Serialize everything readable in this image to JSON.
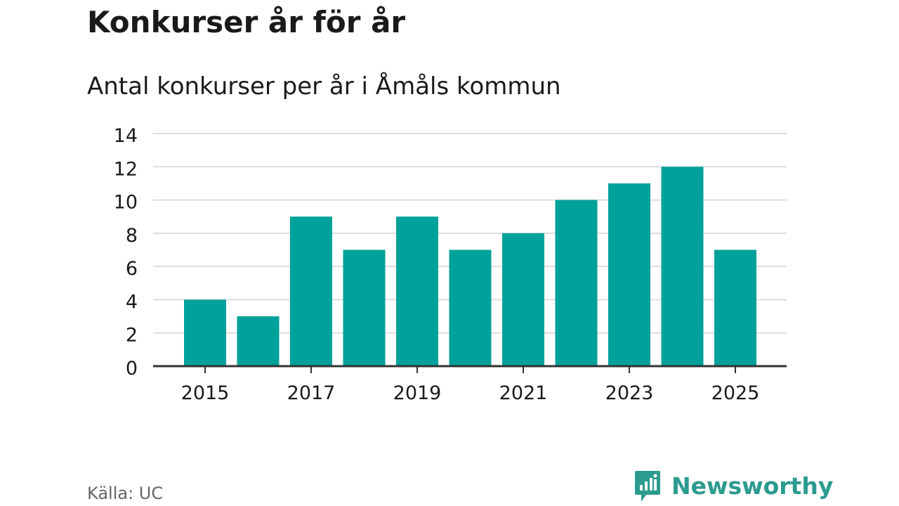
{
  "title": "Konkurser år för år",
  "subtitle": "Antal konkurser per år i Åmåls kommun",
  "source": "Källa: UC",
  "brand": {
    "name": "Newsworthy",
    "icon": "newsworthy-logo-icon"
  },
  "colors": {
    "bar": "#00a19a",
    "brand": "#2d9b8f",
    "axis": "#333333",
    "grid": "#dddddd",
    "text": "#1a1a1a",
    "muted": "#666666"
  },
  "chart_data": {
    "type": "bar",
    "categories": [
      "2015",
      "2016",
      "2017",
      "2018",
      "2019",
      "2020",
      "2021",
      "2022",
      "2023",
      "2024",
      "2025"
    ],
    "values": [
      4,
      3,
      9,
      7,
      9,
      7,
      8,
      10,
      11,
      12,
      7
    ],
    "x_tick_labels": [
      "2015",
      "2017",
      "2019",
      "2021",
      "2023",
      "2025"
    ],
    "y_ticks": [
      0,
      2,
      4,
      6,
      8,
      10,
      12,
      14
    ],
    "ylim": [
      0,
      14
    ],
    "grid": true,
    "xlabel": "",
    "ylabel": ""
  }
}
